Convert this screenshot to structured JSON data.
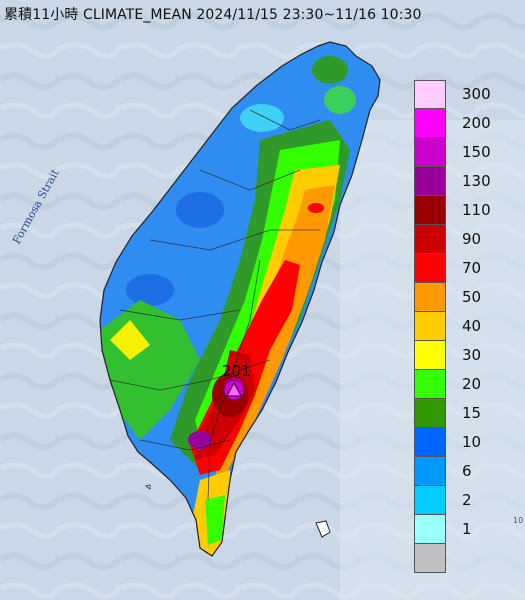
{
  "header": {
    "title": "累積11小時 CLIMATE_MEAN 2024/11/15 23:30~11/16 10:30"
  },
  "map": {
    "strait_label": "Formosa Strait",
    "max_value_label": "201",
    "corner_label": "10"
  },
  "legend": {
    "items": [
      {
        "label": "300",
        "color": "#ffccff"
      },
      {
        "label": "200",
        "color": "#ff00ff"
      },
      {
        "label": "150",
        "color": "#cc00cc"
      },
      {
        "label": "130",
        "color": "#990099"
      },
      {
        "label": "110",
        "color": "#990000"
      },
      {
        "label": "90",
        "color": "#cc0000"
      },
      {
        "label": "70",
        "color": "#ff0000"
      },
      {
        "label": "50",
        "color": "#ff9900"
      },
      {
        "label": "40",
        "color": "#ffcc00"
      },
      {
        "label": "30",
        "color": "#ffff00"
      },
      {
        "label": "20",
        "color": "#33ff00"
      },
      {
        "label": "15",
        "color": "#339900"
      },
      {
        "label": "10",
        "color": "#0066ff"
      },
      {
        "label": "6",
        "color": "#0099ff"
      },
      {
        "label": "2",
        "color": "#00ccff"
      },
      {
        "label": "1",
        "color": "#99ffff"
      },
      {
        "label": "",
        "color": "#c0c0c0"
      }
    ]
  }
}
